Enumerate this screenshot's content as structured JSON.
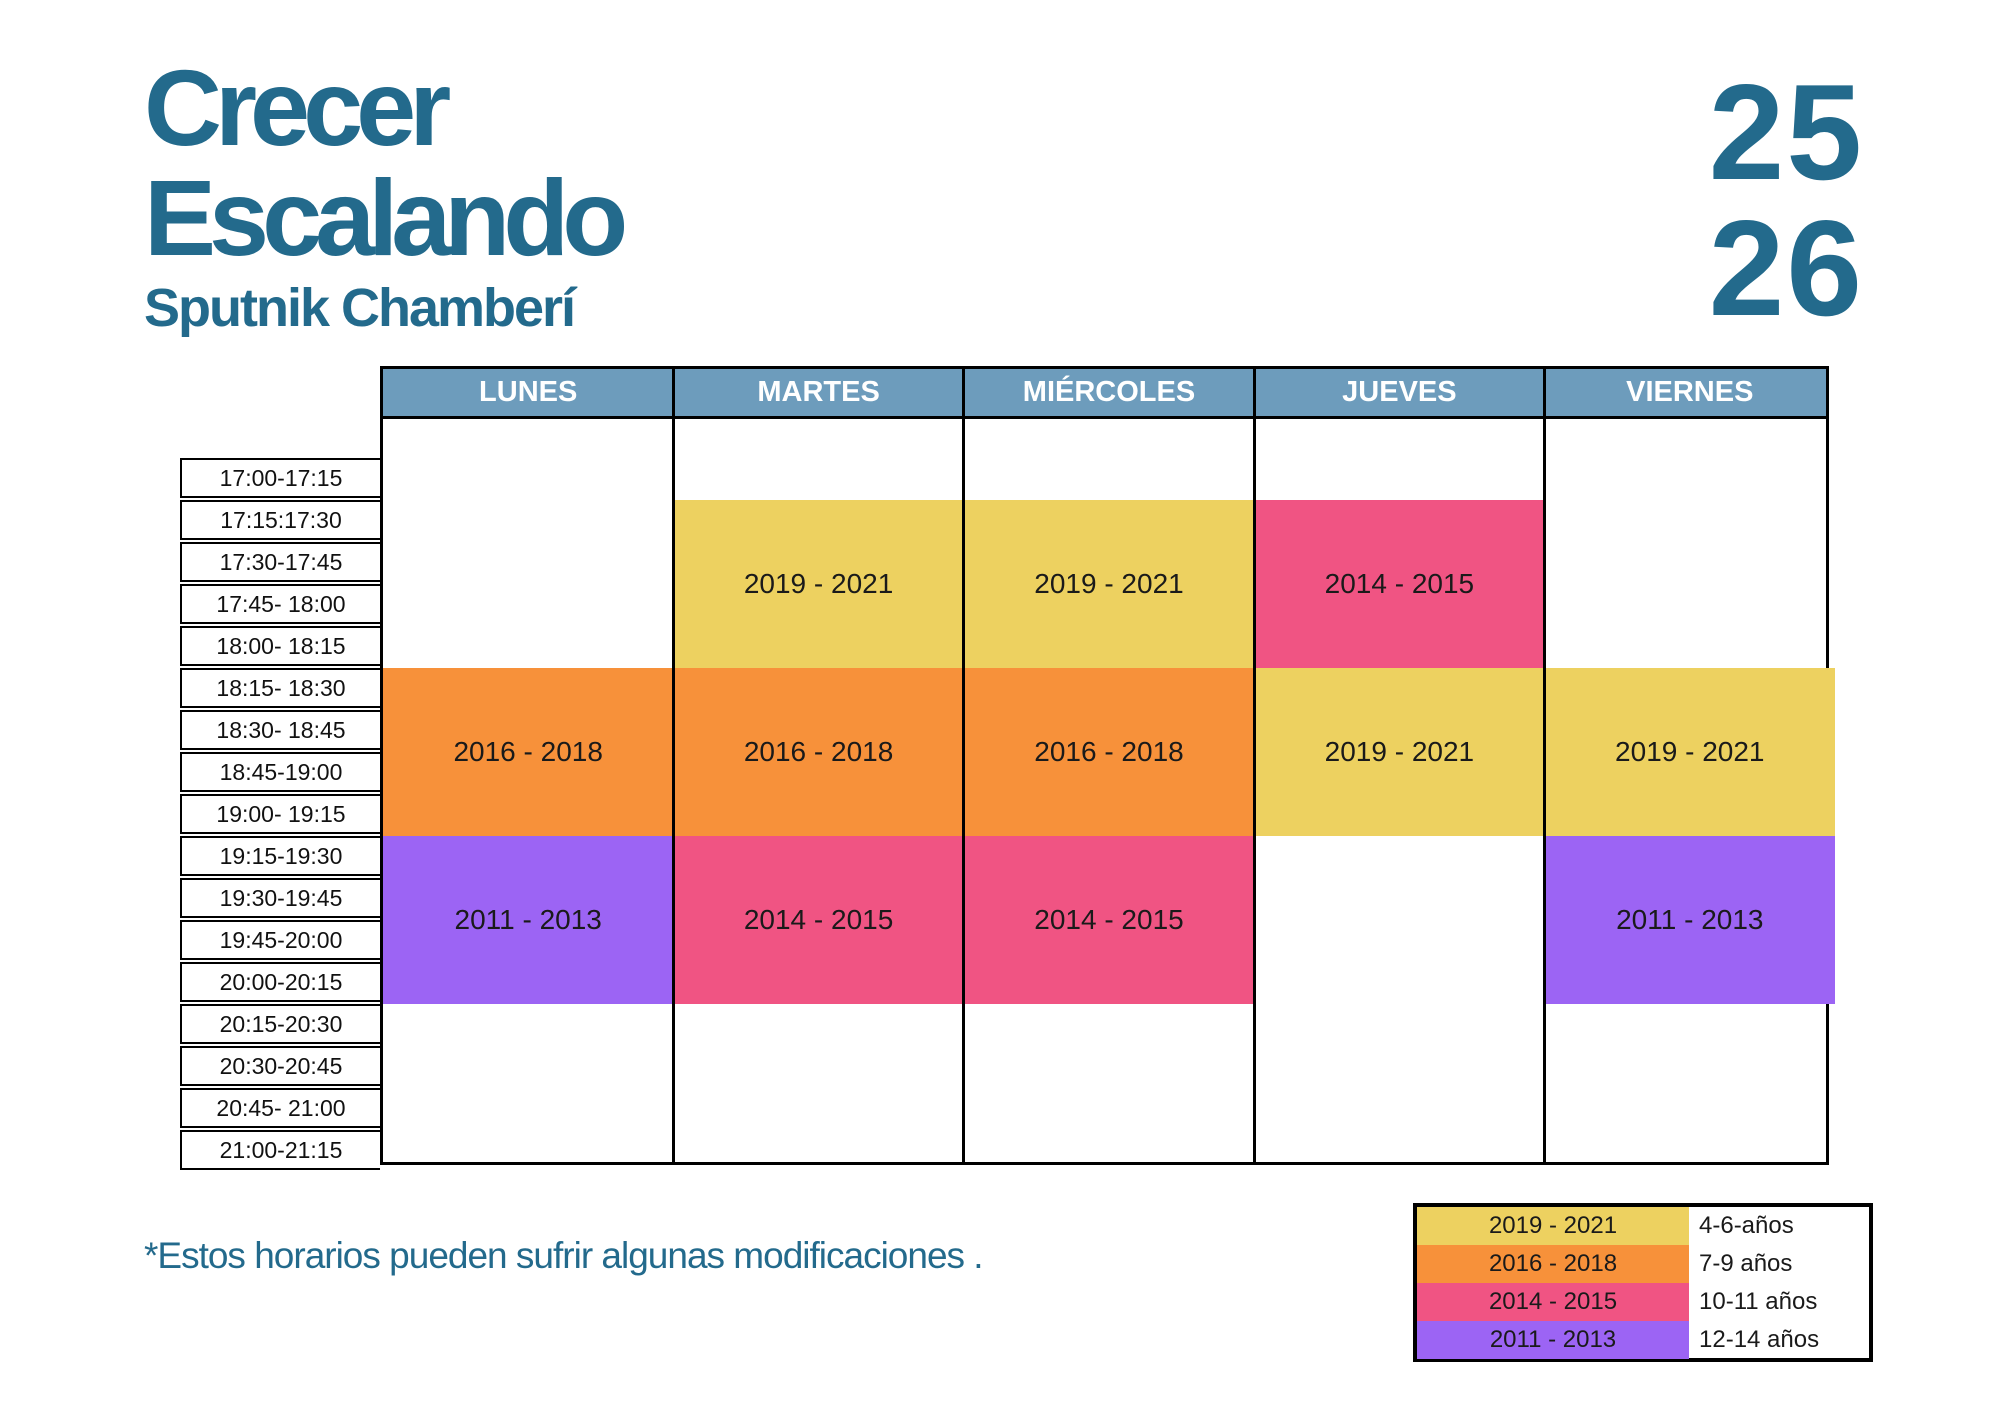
{
  "header": {
    "title_line1": "Crecer",
    "title_line2": "Escalando",
    "subtitle": "Sputnik Chamberí",
    "season_line1": "25",
    "season_line2": "26"
  },
  "schedule": {
    "days": [
      "LUNES",
      "MARTES",
      "MIÉRCOLES",
      "JUEVES",
      "VIERNES"
    ],
    "time_slots": [
      "17:00-17:15",
      "17:15:17:30",
      "17:30-17:45",
      "17:45- 18:00",
      "18:00- 18:15",
      "18:15- 18:30",
      "18:30- 18:45",
      "18:45-19:00",
      "19:00- 19:15",
      "19:15-19:30",
      "19:30-19:45",
      "19:45-20:00",
      "20:00-20:15",
      "20:15-20:30",
      "20:30-20:45",
      "20:45- 21:00",
      "21:00-21:15"
    ],
    "blocks": [
      {
        "day": "MARTES",
        "start": "17:15",
        "end": "18:15",
        "label": "2019 - 2021",
        "group": "4-6-años"
      },
      {
        "day": "MIÉRCOLES",
        "start": "17:15",
        "end": "18:15",
        "label": "2019 - 2021",
        "group": "4-6-años"
      },
      {
        "day": "JUEVES",
        "start": "17:15",
        "end": "18:15",
        "label": "2014 - 2015",
        "group": "10-11 años"
      },
      {
        "day": "LUNES",
        "start": "18:15",
        "end": "19:15",
        "label": "2016 - 2018",
        "group": "7-9 años"
      },
      {
        "day": "MARTES",
        "start": "18:15",
        "end": "19:15",
        "label": "2016 - 2018",
        "group": "7-9 años"
      },
      {
        "day": "MIÉRCOLES",
        "start": "18:15",
        "end": "19:15",
        "label": "2016 - 2018",
        "group": "7-9 años"
      },
      {
        "day": "JUEVES",
        "start": "18:15",
        "end": "19:15",
        "label": "2019 - 2021",
        "group": "4-6-años"
      },
      {
        "day": "VIERNES",
        "start": "18:15",
        "end": "19:15",
        "label": "2019 - 2021",
        "group": "4-6-años"
      },
      {
        "day": "LUNES",
        "start": "19:15",
        "end": "20:15",
        "label": "2011 - 2013",
        "group": "12-14 años"
      },
      {
        "day": "MARTES",
        "start": "19:15",
        "end": "20:15",
        "label": "2014 - 2015",
        "group": "10-11 años"
      },
      {
        "day": "MIÉRCOLES",
        "start": "19:15",
        "end": "20:15",
        "label": "2014 - 2015",
        "group": "10-11 años"
      },
      {
        "day": "VIERNES",
        "start": "19:15",
        "end": "20:15",
        "label": "2011 - 2013",
        "group": "12-14 años"
      }
    ]
  },
  "note": "*Estos horarios pueden sufrir algunas modificaciones .",
  "legend": [
    {
      "years": "2019 - 2021",
      "ages": "4-6-años",
      "color": "#edd160"
    },
    {
      "years": "2016 - 2018",
      "ages": "7-9 años",
      "color": "#f7913a"
    },
    {
      "years": "2014 - 2015",
      "ages": "10-11 años",
      "color": "#f05483"
    },
    {
      "years": "2011 - 2013",
      "ages": "12-14 años",
      "color": "#9c64f4"
    }
  ],
  "colors": {
    "brand_blue": "#236a8c",
    "header_blue": "#6d9cbc"
  }
}
